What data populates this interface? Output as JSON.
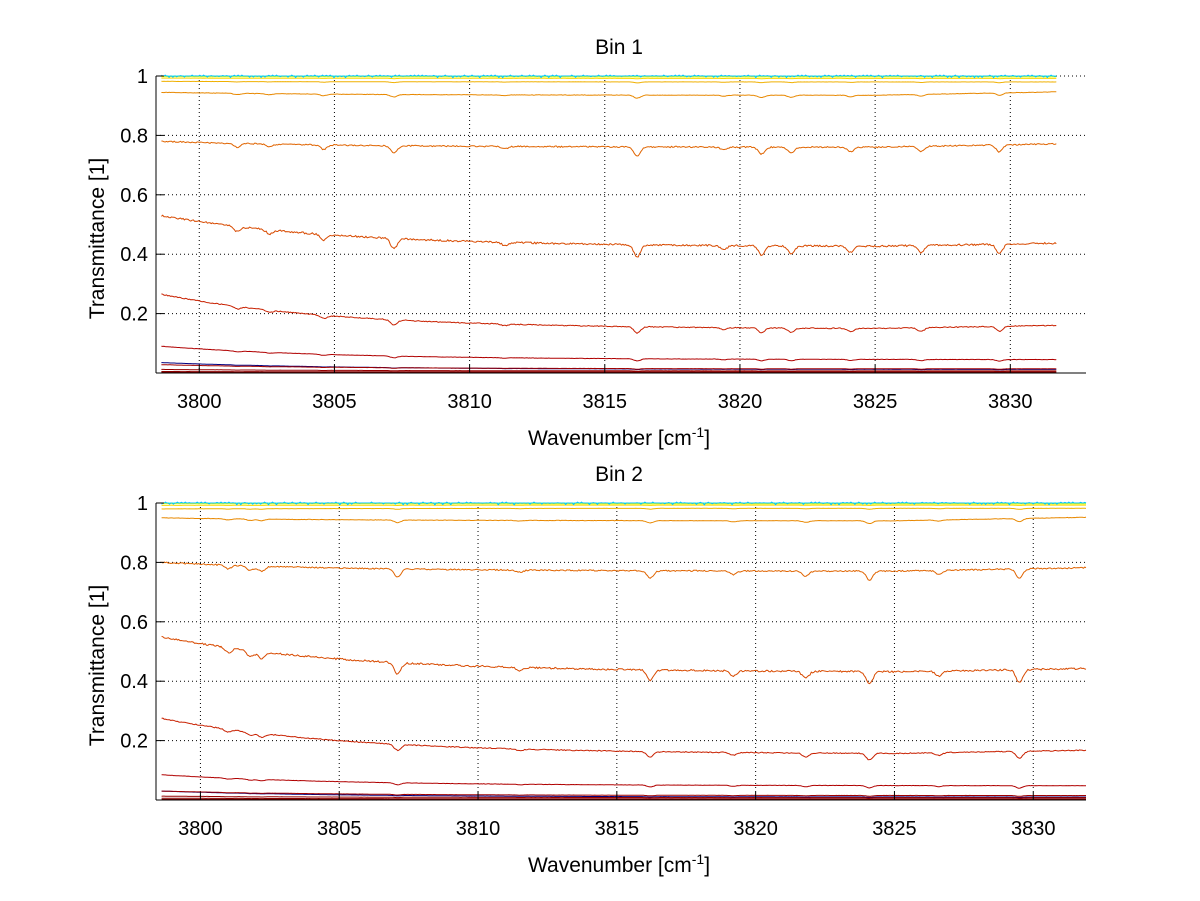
{
  "chart_data": [
    {
      "type": "line",
      "title": "Bin 1",
      "xlabel": "Wavenumber [cm",
      "xlabel_sup": "-1",
      "xlabel_suffix": "]",
      "ylabel": "Transmittance [1]",
      "xlim": [
        3798.4,
        3832.8
      ],
      "ylim": [
        0.0,
        1.0
      ],
      "x_range": [
        3798.6,
        3831.7
      ],
      "x_ticks": [
        3800,
        3805,
        3810,
        3815,
        3820,
        3825,
        3830
      ],
      "y_ticks": [
        0.2,
        0.4,
        0.6,
        0.8,
        1
      ],
      "grid": true,
      "noise_seed": 7,
      "dip_positions": [
        3801.4,
        3802.6,
        3804.6,
        3807.2,
        3811.3,
        3816.2,
        3819.4,
        3820.8,
        3821.9,
        3824.1,
        3826.7,
        3829.6
      ],
      "dip_strengths": [
        0.5,
        0.4,
        0.6,
        1.0,
        0.3,
        1.2,
        0.4,
        0.9,
        0.8,
        0.6,
        0.7,
        0.9
      ],
      "series": [
        {
          "color": "#000080",
          "start": 0.035,
          "baseline": 0.012
        },
        {
          "color": "#800000",
          "start": 0.002,
          "baseline": 0.002
        },
        {
          "color": "#8b0000",
          "start": 0.005,
          "baseline": 0.004
        },
        {
          "color": "#940000",
          "start": 0.012,
          "baseline": 0.007
        },
        {
          "color": "#a00000",
          "start": 0.028,
          "baseline": 0.014
        },
        {
          "color": "#b00000",
          "start": 0.09,
          "baseline": 0.045
        },
        {
          "color": "#c82000",
          "start": 0.265,
          "baseline": 0.148
        },
        {
          "color": "#d84a00",
          "start": 0.53,
          "baseline": 0.425
        },
        {
          "color": "#e06400",
          "start": 0.78,
          "baseline": 0.76
        },
        {
          "color": "#e88800",
          "start": 0.945,
          "baseline": 0.935
        },
        {
          "color": "#f0b000",
          "start": 0.982,
          "baseline": 0.98
        },
        {
          "color": "#f8d800",
          "start": 0.993,
          "baseline": 0.992
        },
        {
          "color": "#ffff00",
          "start": 0.998,
          "baseline": 0.997
        },
        {
          "color": "#b0ff40",
          "start": 1.0,
          "baseline": 1.0
        },
        {
          "color": "#40ffc0",
          "start": 1.0,
          "baseline": 1.0
        },
        {
          "color": "#00c0ff",
          "start": 1.0,
          "baseline": 1.0,
          "noisy": true
        }
      ]
    },
    {
      "type": "line",
      "title": "Bin 2",
      "xlabel": "Wavenumber [cm",
      "xlabel_sup": "-1",
      "xlabel_suffix": "]",
      "ylabel": "Transmittance [1]",
      "xlim": [
        3798.4,
        3831.9
      ],
      "ylim": [
        0.0,
        1.0
      ],
      "x_range": [
        3798.6,
        3831.9
      ],
      "x_ticks": [
        3800,
        3805,
        3810,
        3815,
        3820,
        3825,
        3830
      ],
      "y_ticks": [
        0.2,
        0.4,
        0.6,
        0.8,
        1
      ],
      "grid": true,
      "noise_seed": 19,
      "dip_positions": [
        3801.0,
        3801.8,
        3802.2,
        3807.1,
        3811.5,
        3816.2,
        3819.2,
        3821.8,
        3824.1,
        3826.6,
        3829.5
      ],
      "dip_strengths": [
        0.5,
        0.6,
        0.7,
        1.1,
        0.3,
        1.0,
        0.5,
        0.7,
        1.2,
        0.5,
        1.3
      ],
      "series": [
        {
          "color": "#000080",
          "start": 0.03,
          "baseline": 0.01
        },
        {
          "color": "#800000",
          "start": 0.002,
          "baseline": 0.002
        },
        {
          "color": "#8b0000",
          "start": 0.006,
          "baseline": 0.004
        },
        {
          "color": "#940000",
          "start": 0.013,
          "baseline": 0.008
        },
        {
          "color": "#a00000",
          "start": 0.03,
          "baseline": 0.015
        },
        {
          "color": "#b00000",
          "start": 0.085,
          "baseline": 0.048
        },
        {
          "color": "#c82000",
          "start": 0.275,
          "baseline": 0.155
        },
        {
          "color": "#d84a00",
          "start": 0.55,
          "baseline": 0.43
        },
        {
          "color": "#e06400",
          "start": 0.8,
          "baseline": 0.77
        },
        {
          "color": "#e88800",
          "start": 0.95,
          "baseline": 0.94
        },
        {
          "color": "#f0b000",
          "start": 0.98,
          "baseline": 0.982
        },
        {
          "color": "#f8d800",
          "start": 0.992,
          "baseline": 0.993
        },
        {
          "color": "#ffff00",
          "start": 0.998,
          "baseline": 0.997
        },
        {
          "color": "#b0ff40",
          "start": 1.0,
          "baseline": 1.0
        },
        {
          "color": "#40ffc0",
          "start": 1.0,
          "baseline": 1.0
        },
        {
          "color": "#00c0ff",
          "start": 1.0,
          "baseline": 1.0,
          "noisy": true
        }
      ]
    }
  ]
}
